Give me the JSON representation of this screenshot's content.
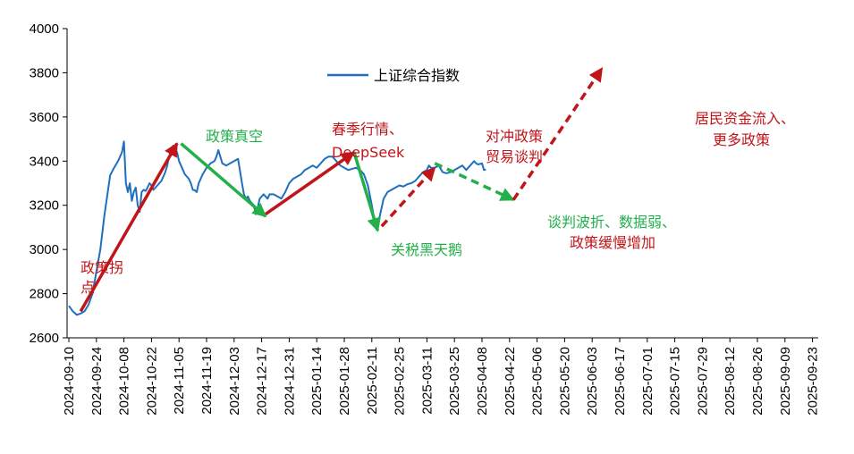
{
  "chart_data": {
    "type": "line",
    "title": "",
    "xlabel": "",
    "ylabel": "",
    "ylim": [
      2600,
      4000
    ],
    "yticks": [
      2600,
      2800,
      3000,
      3200,
      3400,
      3600,
      3800,
      4000
    ],
    "xticks": [
      "2024-09-10",
      "2024-09-24",
      "2024-10-08",
      "2024-10-22",
      "2024-11-05",
      "2024-11-19",
      "2024-12-03",
      "2024-12-17",
      "2024-12-31",
      "2025-01-14",
      "2025-01-28",
      "2025-02-11",
      "2025-02-25",
      "2025-03-11",
      "2025-03-25",
      "2025-04-08",
      "2025-04-22",
      "2025-05-06",
      "2025-05-20",
      "2025-06-03",
      "2025-06-17",
      "2025-07-01",
      "2025-07-15",
      "2025-07-29",
      "2025-08-12",
      "2025-08-26",
      "2025-09-09",
      "2025-09-23"
    ],
    "legend": {
      "label": "上证综合指数",
      "placement": "top-center"
    },
    "series": [
      {
        "name": "上证综合指数",
        "color": "#1f6fbf",
        "points": [
          [
            0,
            2745
          ],
          [
            2,
            2720
          ],
          [
            4,
            2704
          ],
          [
            6,
            2710
          ],
          [
            8,
            2720
          ],
          [
            10,
            2750
          ],
          [
            12,
            2800
          ],
          [
            14,
            2900
          ],
          [
            16,
            3000
          ],
          [
            18,
            3150
          ],
          [
            21,
            3336
          ],
          [
            23,
            3370
          ],
          [
            25,
            3400
          ],
          [
            27,
            3440
          ],
          [
            28,
            3489
          ],
          [
            29,
            3300
          ],
          [
            30,
            3260
          ],
          [
            31,
            3300
          ],
          [
            32,
            3220
          ],
          [
            33,
            3260
          ],
          [
            34,
            3280
          ],
          [
            35,
            3200
          ],
          [
            36,
            3170
          ],
          [
            37,
            3260
          ],
          [
            38,
            3270
          ],
          [
            39,
            3265
          ],
          [
            40,
            3280
          ],
          [
            41,
            3300
          ],
          [
            42,
            3290
          ],
          [
            43,
            3270
          ],
          [
            44,
            3280
          ],
          [
            45,
            3290
          ],
          [
            46,
            3300
          ],
          [
            47,
            3310
          ],
          [
            48,
            3330
          ],
          [
            49,
            3350
          ],
          [
            50,
            3380
          ],
          [
            51,
            3420
          ],
          [
            52,
            3450
          ],
          [
            53,
            3470
          ],
          [
            54,
            3450
          ],
          [
            55,
            3440
          ],
          [
            56,
            3400
          ],
          [
            57,
            3380
          ],
          [
            58,
            3360
          ],
          [
            59,
            3340
          ],
          [
            60,
            3330
          ],
          [
            61,
            3320
          ],
          [
            62,
            3300
          ],
          [
            63,
            3270
          ],
          [
            64,
            3268
          ],
          [
            65,
            3260
          ],
          [
            66,
            3300
          ],
          [
            67,
            3320
          ],
          [
            68,
            3340
          ],
          [
            70,
            3370
          ],
          [
            72,
            3390
          ],
          [
            74,
            3400
          ],
          [
            75,
            3420
          ],
          [
            76,
            3450
          ],
          [
            77,
            3420
          ],
          [
            78,
            3390
          ],
          [
            80,
            3380
          ],
          [
            82,
            3390
          ],
          [
            84,
            3400
          ],
          [
            86,
            3410
          ],
          [
            88,
            3300
          ],
          [
            89,
            3250
          ],
          [
            90,
            3230
          ],
          [
            91,
            3240
          ],
          [
            92,
            3220
          ],
          [
            93,
            3210
          ],
          [
            94,
            3200
          ],
          [
            95,
            3160
          ],
          [
            96,
            3190
          ],
          [
            97,
            3230
          ],
          [
            98,
            3240
          ],
          [
            99,
            3250
          ],
          [
            100,
            3240
          ],
          [
            101,
            3230
          ],
          [
            102,
            3250
          ],
          [
            104,
            3250
          ],
          [
            106,
            3240
          ],
          [
            108,
            3230
          ],
          [
            110,
            3260
          ],
          [
            112,
            3300
          ],
          [
            114,
            3320
          ],
          [
            116,
            3330
          ],
          [
            118,
            3340
          ],
          [
            119,
            3350
          ],
          [
            120,
            3360
          ],
          [
            122,
            3370
          ],
          [
            124,
            3380
          ],
          [
            126,
            3370
          ],
          [
            128,
            3390
          ],
          [
            130,
            3410
          ],
          [
            132,
            3420
          ],
          [
            134,
            3420
          ],
          [
            136,
            3400
          ],
          [
            138,
            3380
          ],
          [
            140,
            3370
          ],
          [
            142,
            3360
          ],
          [
            144,
            3365
          ],
          [
            146,
            3370
          ],
          [
            148,
            3360
          ],
          [
            150,
            3340
          ],
          [
            152,
            3290
          ],
          [
            154,
            3200
          ],
          [
            156,
            3100
          ],
          [
            157,
            3094
          ],
          [
            158,
            3150
          ],
          [
            160,
            3230
          ],
          [
            162,
            3260
          ],
          [
            164,
            3270
          ],
          [
            166,
            3280
          ],
          [
            168,
            3290
          ],
          [
            170,
            3285
          ],
          [
            172,
            3295
          ],
          [
            174,
            3300
          ],
          [
            176,
            3310
          ],
          [
            178,
            3330
          ],
          [
            180,
            3350
          ],
          [
            182,
            3360
          ],
          [
            183,
            3380
          ],
          [
            184,
            3370
          ],
          [
            186,
            3370
          ],
          [
            188,
            3380
          ],
          [
            190,
            3350
          ],
          [
            192,
            3345
          ],
          [
            194,
            3350
          ],
          [
            196,
            3360
          ],
          [
            198,
            3370
          ],
          [
            200,
            3380
          ],
          [
            202,
            3360
          ],
          [
            204,
            3380
          ],
          [
            206,
            3400
          ],
          [
            207,
            3390
          ],
          [
            208,
            3385
          ],
          [
            210,
            3390
          ],
          [
            211,
            3360
          ],
          [
            212,
            3362
          ]
        ]
      }
    ],
    "annotations": [
      {
        "type": "arrow",
        "style": "solid",
        "color": "#c0151a",
        "from": [
          6,
          2720
        ],
        "to": [
          55,
          3480
        ]
      },
      {
        "type": "arrow",
        "style": "solid",
        "color": "#22b04a",
        "from": [
          57,
          3480
        ],
        "to": [
          100,
          3150
        ]
      },
      {
        "type": "arrow",
        "style": "solid",
        "color": "#c0151a",
        "from": [
          100,
          3160
        ],
        "to": [
          145,
          3440
        ]
      },
      {
        "type": "arrow",
        "style": "solid",
        "color": "#22b04a",
        "from": [
          145,
          3440
        ],
        "to": [
          157,
          3085
        ]
      },
      {
        "type": "arrow",
        "style": "dashed",
        "color": "#c0151a",
        "from": [
          159,
          3105
        ],
        "to": [
          186,
          3370
        ]
      },
      {
        "type": "arrow",
        "style": "dashed",
        "color": "#22b04a",
        "from": [
          186,
          3390
        ],
        "to": [
          226,
          3225
        ]
      },
      {
        "type": "arrow",
        "style": "dashed",
        "color": "#c0151a",
        "from": [
          226,
          3225
        ],
        "to": [
          271,
          3820
        ]
      }
    ],
    "text_annotations": [
      {
        "lines": [
          "政策拐",
          "点"
        ],
        "color": "#c0151a"
      },
      {
        "lines": [
          "政策真空"
        ],
        "color": "#22b04a"
      },
      {
        "lines": [
          "春季行情、",
          "DeepSeek"
        ],
        "color": "#c0151a"
      },
      {
        "lines": [
          "关税黑天鹅"
        ],
        "color": "#22b04a"
      },
      {
        "lines": [
          "对冲政策",
          "贸易谈判"
        ],
        "color": "#c0151a"
      },
      {
        "lines": [
          "谈判波折、数据弱、"
        ],
        "color": "#22b04a"
      },
      {
        "lines": [
          "政策缓慢增加"
        ],
        "color": "#c0151a"
      },
      {
        "lines": [
          "居民资金流入、",
          "更多政策"
        ],
        "color": "#c0151a"
      }
    ]
  }
}
